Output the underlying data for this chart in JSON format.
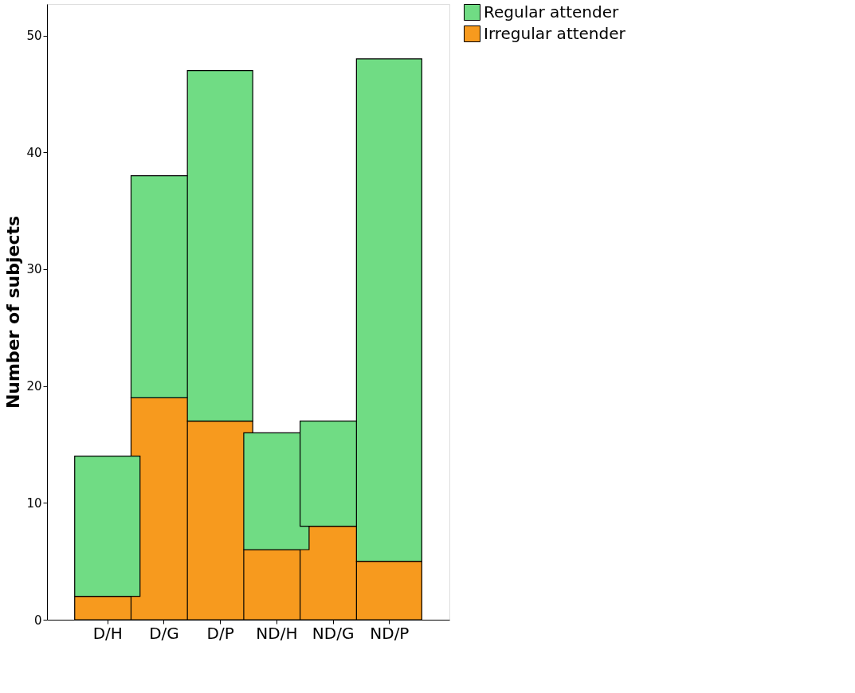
{
  "chart_data": {
    "type": "bar",
    "stacked": true,
    "ylabel": "Number of subjects",
    "categories": [
      "D/H",
      "D/G",
      "D/P",
      "ND/H",
      "ND/G",
      "ND/P"
    ],
    "series": [
      {
        "name": "Irregular attender",
        "color": "#f79a1e",
        "values": [
          2,
          19,
          17,
          6,
          8,
          5
        ]
      },
      {
        "name": "Regular attender",
        "color": "#70dc84",
        "values": [
          12,
          19,
          30,
          10,
          9,
          43
        ]
      }
    ],
    "ylim": [
      0,
      52.7
    ],
    "yticks": [
      0,
      10,
      20,
      30,
      40,
      50
    ],
    "grid": false,
    "legend": "top right"
  }
}
